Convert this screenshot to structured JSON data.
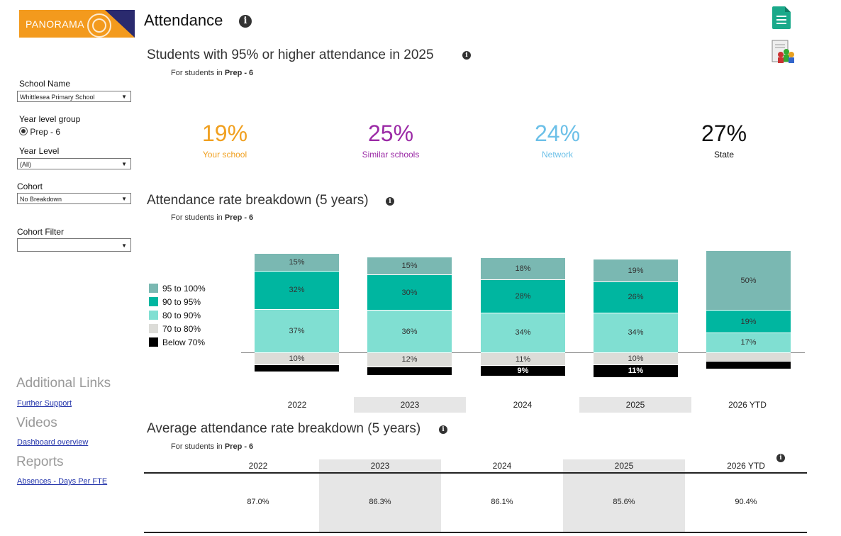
{
  "header": {
    "logo_text": "PANORAMA",
    "title": "Attendance",
    "info_icon": "info-icon",
    "doc_icon": "document-icon",
    "people_icon": "users-report-icon"
  },
  "sidebar": {
    "school_label": "School Name",
    "school_value": "Whittlesea Primary School",
    "year_group_label": "Year level group",
    "year_group_option": "Prep - 6",
    "year_level_label": "Year Level",
    "year_level_value": "(All)",
    "cohort_label": "Cohort",
    "cohort_value": "No Breakdown",
    "cohort_filter_label": "Cohort Filter",
    "cohort_filter_value": "",
    "additional_links": "Additional Links",
    "further_support": "Further Support",
    "videos": "Videos",
    "dashboard_overview": "Dashboard overview",
    "reports": "Reports",
    "absences": "Absences - Days Per FTE"
  },
  "kpi": {
    "title": "Students with 95% or higher attendance in 2025",
    "note_prefix": "For students in ",
    "note_bold": "Prep - 6",
    "items": [
      {
        "value": "19%",
        "label": "Your school",
        "color": "#f0a020"
      },
      {
        "value": "25%",
        "label": "Similar schools",
        "color": "#9b2aa6"
      },
      {
        "value": "24%",
        "label": "Network",
        "color": "#6cc0e8"
      },
      {
        "value": "27%",
        "label": "State",
        "color": "#111111"
      }
    ]
  },
  "breakdown": {
    "title": "Attendance rate breakdown (5 years)",
    "note_prefix": "For students in ",
    "note_bold": "Prep - 6",
    "legend": [
      {
        "label": "95 to 100%",
        "color": "#7ab8b2"
      },
      {
        "label": "90 to 95%",
        "color": "#00b6a0"
      },
      {
        "label": "80 to 90%",
        "color": "#80dfd2"
      },
      {
        "label": "70 to 80%",
        "color": "#dcdcd8"
      },
      {
        "label": "Below 70%",
        "color": "#000000"
      }
    ]
  },
  "chart_data": {
    "type": "bar",
    "stacked": true,
    "categories": [
      "2022",
      "2023",
      "2024",
      "2025",
      "2026 YTD"
    ],
    "series": [
      {
        "name": "95 to 100%",
        "values": [
          15,
          15,
          18,
          19,
          50
        ],
        "labels": [
          "15%",
          "15%",
          "18%",
          "19%",
          "50%"
        ]
      },
      {
        "name": "90 to 95%",
        "values": [
          32,
          30,
          28,
          26,
          19
        ],
        "labels": [
          "32%",
          "30%",
          "28%",
          "26%",
          "19%"
        ]
      },
      {
        "name": "80 to 90%",
        "values": [
          37,
          36,
          34,
          34,
          17
        ],
        "labels": [
          "37%",
          "36%",
          "34%",
          "34%",
          "17%"
        ]
      },
      {
        "name": "70 to 80%",
        "values": [
          10,
          12,
          11,
          10,
          7
        ],
        "labels": [
          "10%",
          "12%",
          "11%",
          "10%",
          ""
        ]
      },
      {
        "name": "Below 70%",
        "values": [
          6,
          7,
          9,
          11,
          7
        ],
        "labels": [
          "",
          "",
          "9%",
          "11%",
          ""
        ]
      }
    ]
  },
  "avg_table": {
    "title": "Average attendance rate breakdown (5 years)",
    "note_prefix": "For students in ",
    "note_bold": "Prep - 6",
    "years": [
      "2022",
      "2023",
      "2024",
      "2025",
      "2026 YTD"
    ],
    "values": [
      "87.0%",
      "86.3%",
      "86.1%",
      "85.6%",
      "90.4%"
    ]
  }
}
